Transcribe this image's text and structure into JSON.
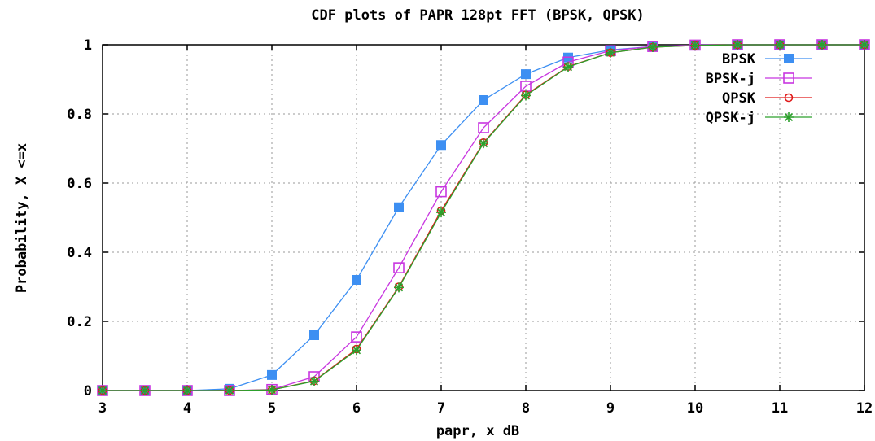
{
  "chart_data": {
    "type": "line",
    "title": "CDF plots of PAPR 128pt FFT (BPSK, QPSK)",
    "xlabel": "papr, x dB",
    "ylabel": "Probability, X <=x",
    "xlim": [
      3,
      12
    ],
    "ylim": [
      0,
      1
    ],
    "grid": true,
    "legend_position": "top-right",
    "x_ticks": [
      "3",
      "4",
      "5",
      "6",
      "7",
      "8",
      "9",
      "10",
      "11",
      "12"
    ],
    "y_ticks": [
      "0",
      "0.2",
      "0.4",
      "0.6",
      "0.8",
      "1"
    ],
    "x": [
      3,
      3.5,
      4,
      4.5,
      5,
      5.5,
      6,
      6.5,
      7,
      7.5,
      8,
      8.5,
      9,
      9.5,
      10,
      10.5,
      11,
      11.5,
      12
    ],
    "series": [
      {
        "name": "BPSK",
        "color": "#3d8ff2",
        "marker": "filled-square",
        "values": [
          0,
          0,
          0,
          0.005,
          0.045,
          0.16,
          0.32,
          0.53,
          0.71,
          0.84,
          0.915,
          0.963,
          0.985,
          0.995,
          0.999,
          1,
          1,
          1,
          1
        ]
      },
      {
        "name": "BPSK-j",
        "color": "#c836e0",
        "marker": "open-square",
        "values": [
          0,
          0,
          0,
          0,
          0.003,
          0.04,
          0.155,
          0.355,
          0.575,
          0.76,
          0.88,
          0.95,
          0.983,
          0.995,
          0.999,
          1,
          1,
          1,
          1
        ]
      },
      {
        "name": "QPSK",
        "color": "#e01b1b",
        "marker": "open-circle",
        "values": [
          0,
          0,
          0,
          0,
          0.002,
          0.028,
          0.12,
          0.3,
          0.52,
          0.717,
          0.855,
          0.937,
          0.977,
          0.993,
          0.998,
          1,
          1,
          1,
          1
        ]
      },
      {
        "name": "QPSK-j",
        "color": "#2ca02c",
        "marker": "asterisk",
        "values": [
          0,
          0,
          0,
          0,
          0.002,
          0.027,
          0.117,
          0.298,
          0.515,
          0.715,
          0.853,
          0.936,
          0.977,
          0.993,
          0.998,
          1,
          1,
          1,
          1
        ]
      }
    ]
  }
}
